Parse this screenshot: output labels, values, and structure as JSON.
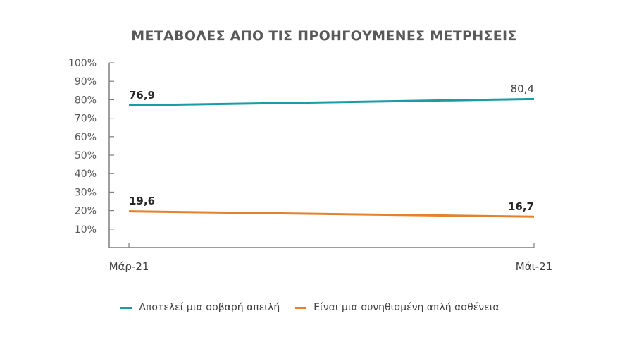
{
  "chart_data": {
    "type": "line",
    "title": "ΜΕΤΑΒΟΛΕΣ ΑΠΟ ΤΙΣ ΠΡΟΗΓΟΥΜΕΝΕΣ ΜΕΤΡΗΣΕΙΣ",
    "categories": [
      "Μάρ-21",
      "Μάι-21"
    ],
    "series": [
      {
        "name": "Αποτελεί μια σοβαρή απειλή",
        "values": [
          76.9,
          80.4
        ],
        "labels": [
          "76,9",
          "80,4"
        ],
        "color": "#1a9ba6"
      },
      {
        "name": "Είναι μια συνηθισμένη απλή ασθένεια",
        "values": [
          19.6,
          16.7
        ],
        "labels": [
          "19,6",
          "16,7"
        ],
        "color": "#e4812f"
      }
    ],
    "xlabel": "",
    "ylabel": "",
    "ylim": [
      0,
      100
    ],
    "yticks": [
      "10%",
      "20%",
      "30%",
      "40%",
      "50%",
      "60%",
      "70%",
      "80%",
      "90%",
      "100%"
    ],
    "grid": false,
    "legend_position": "bottom"
  }
}
